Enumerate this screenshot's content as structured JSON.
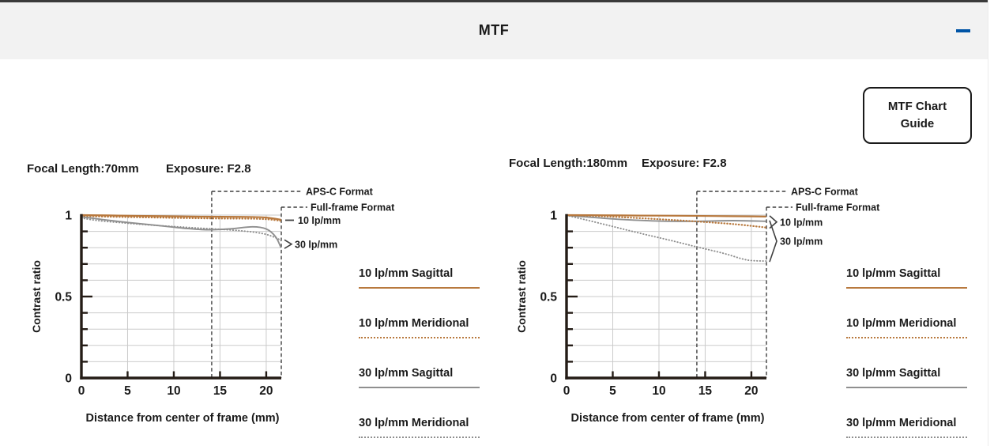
{
  "header": {
    "title": "MTF",
    "collapse_symbol": "minus"
  },
  "guide_button": {
    "line1": "MTF Chart",
    "line2": "Guide"
  },
  "colors": {
    "accent_orange": "#b8793e",
    "line_gray": "#8f8f8f",
    "grid": "#cbcbcb",
    "axis": "#241c16",
    "annotation": "#3f3f3f",
    "header_bg": "#f2f2f2",
    "collapse_blue": "#0054a6",
    "text": "#1a1a1a"
  },
  "annotations": {
    "apsc": "APS-C Format",
    "fullframe": "Full-frame Format",
    "lp10": "10 lp/mm",
    "lp30": "30 lp/mm"
  },
  "legend": {
    "items": [
      {
        "label": "10 lp/mm Sagittal",
        "color": "#b8793e",
        "style": "solid"
      },
      {
        "label": "10 lp/mm Meridional",
        "color": "#b8793e",
        "style": "dotted"
      },
      {
        "label": "30 lp/mm Sagittal",
        "color": "#8f8f8f",
        "style": "solid"
      },
      {
        "label": "30 lp/mm Meridional",
        "color": "#8f8f8f",
        "style": "dotted"
      }
    ]
  },
  "chart_data": [
    {
      "type": "line",
      "title": {
        "focal": "Focal Length:70mm",
        "exposure": "Exposure: F2.8"
      },
      "xlabel": "Distance from center of frame (mm)",
      "ylabel": "Contrast ratio",
      "xlim": [
        0,
        21.63
      ],
      "ylim": [
        0,
        1
      ],
      "xticks": [
        0,
        5,
        10,
        15,
        20
      ],
      "yticks": [
        {
          "v": 1,
          "label": "1"
        },
        {
          "v": 0.5,
          "label": "0.5"
        },
        {
          "v": 0,
          "label": "0"
        }
      ],
      "apsc_x": 14.1,
      "fullframe_x": 21.63,
      "grid": true,
      "series": [
        {
          "name": "10 lp/mm Sagittal",
          "style": "solid",
          "color_key": "accent_orange",
          "x": [
            0,
            3,
            6,
            9,
            12,
            15,
            18,
            20,
            21.6
          ],
          "y": [
            1.0,
            0.998,
            0.995,
            0.993,
            0.991,
            0.99,
            0.989,
            0.985,
            0.972
          ]
        },
        {
          "name": "10 lp/mm Meridional",
          "style": "dotted",
          "color_key": "accent_orange",
          "x": [
            0,
            3,
            6,
            9,
            12,
            15,
            18,
            20,
            21.6
          ],
          "y": [
            0.995,
            0.99,
            0.987,
            0.984,
            0.981,
            0.979,
            0.978,
            0.975,
            0.965
          ]
        },
        {
          "name": "30 lp/mm Sagittal",
          "style": "solid",
          "color_key": "line_gray",
          "x": [
            0,
            2,
            5,
            8,
            11,
            13.5,
            16,
            18.5,
            20,
            21,
            21.6
          ],
          "y": [
            0.99,
            0.975,
            0.955,
            0.938,
            0.92,
            0.91,
            0.915,
            0.928,
            0.915,
            0.868,
            0.8
          ]
        },
        {
          "name": "30 lp/mm Meridional",
          "style": "dotted",
          "color_key": "line_gray",
          "x": [
            0,
            2,
            5,
            8,
            11,
            14,
            17,
            19.5,
            21,
            21.6
          ],
          "y": [
            0.982,
            0.965,
            0.95,
            0.937,
            0.926,
            0.916,
            0.905,
            0.888,
            0.862,
            0.843
          ]
        }
      ]
    },
    {
      "type": "line",
      "title": {
        "focal": "Focal Length:180mm",
        "exposure": "Exposure: F2.8"
      },
      "xlabel": "Distance from center of frame (mm)",
      "ylabel": "Contrast ratio",
      "xlim": [
        0,
        21.63
      ],
      "ylim": [
        0,
        1
      ],
      "xticks": [
        0,
        5,
        10,
        15,
        20
      ],
      "yticks": [
        {
          "v": 1,
          "label": "1"
        },
        {
          "v": 0.5,
          "label": "0.5"
        },
        {
          "v": 0,
          "label": "0"
        }
      ],
      "apsc_x": 14.1,
      "fullframe_x": 21.63,
      "grid": true,
      "series": [
        {
          "name": "10 lp/mm Sagittal",
          "style": "solid",
          "color_key": "accent_orange",
          "x": [
            0,
            4,
            8,
            12,
            16,
            20,
            21.6
          ],
          "y": [
            1.0,
            0.999,
            0.997,
            0.996,
            0.994,
            0.992,
            0.991
          ]
        },
        {
          "name": "10 lp/mm Meridional",
          "style": "dotted",
          "color_key": "accent_orange",
          "x": [
            0,
            3,
            6,
            10,
            14,
            18,
            21.6
          ],
          "y": [
            1.0,
            0.995,
            0.987,
            0.975,
            0.961,
            0.945,
            0.924
          ]
        },
        {
          "name": "30 lp/mm Sagittal",
          "style": "solid",
          "color_key": "line_gray",
          "x": [
            0,
            3,
            6,
            10,
            14,
            18,
            21.6
          ],
          "y": [
            0.998,
            0.985,
            0.973,
            0.963,
            0.962,
            0.966,
            0.962
          ]
        },
        {
          "name": "30 lp/mm Meridional",
          "style": "dotted",
          "color_key": "line_gray",
          "x": [
            0,
            2,
            5,
            8,
            11,
            14,
            17,
            19.5,
            21.6
          ],
          "y": [
            0.998,
            0.972,
            0.93,
            0.888,
            0.848,
            0.806,
            0.765,
            0.725,
            0.718
          ]
        }
      ]
    }
  ]
}
